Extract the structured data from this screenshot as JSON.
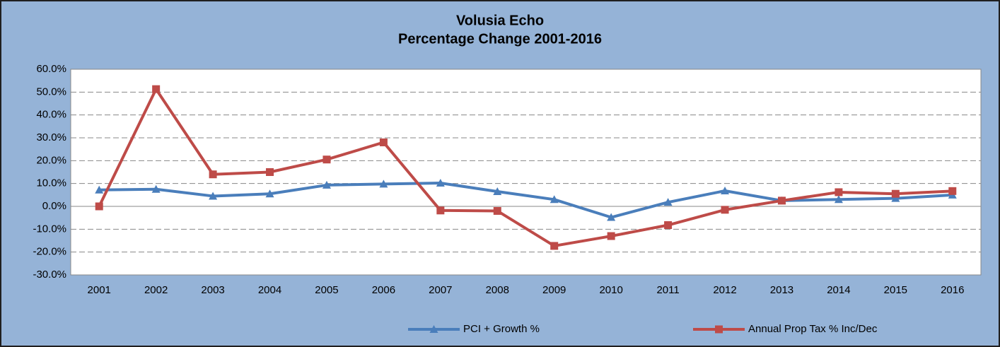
{
  "chart_data": {
    "type": "line",
    "title": [
      "Volusia Echo",
      "Percentage Change 2001-2016"
    ],
    "categories": [
      "2001",
      "2002",
      "2003",
      "2004",
      "2005",
      "2006",
      "2007",
      "2008",
      "2009",
      "2010",
      "2011",
      "2012",
      "2013",
      "2014",
      "2015",
      "2016"
    ],
    "series": [
      {
        "name": "PCI + Growth %",
        "color": "#4a7ebb",
        "marker": "triangle",
        "values": [
          7.2,
          7.5,
          4.5,
          5.5,
          9.3,
          9.8,
          10.2,
          6.5,
          3.0,
          -4.8,
          1.8,
          6.8,
          2.5,
          3.0,
          3.5,
          5.0
        ]
      },
      {
        "name": "Annual Prop Tax % Inc/Dec",
        "color": "#be4b48",
        "marker": "square",
        "values": [
          0.0,
          51.3,
          14.0,
          15.0,
          20.5,
          28.0,
          -1.8,
          -2.0,
          -17.3,
          -13.0,
          -8.2,
          -1.5,
          2.5,
          6.2,
          5.5,
          6.7
        ]
      }
    ],
    "ylim": [
      -30,
      60
    ],
    "yticks": [
      {
        "value": -30,
        "label": "-30.0%"
      },
      {
        "value": -20,
        "label": "-20.0%"
      },
      {
        "value": -10,
        "label": "-10.0%"
      },
      {
        "value": 0,
        "label": "0.0%"
      },
      {
        "value": 10,
        "label": "10.0%"
      },
      {
        "value": 20,
        "label": "20.0%"
      },
      {
        "value": 30,
        "label": "30.0%"
      },
      {
        "value": 40,
        "label": "40.0%"
      },
      {
        "value": 50,
        "label": "50.0%"
      },
      {
        "value": 60,
        "label": "60.0%"
      }
    ],
    "grid": true,
    "legend": "bottom"
  }
}
